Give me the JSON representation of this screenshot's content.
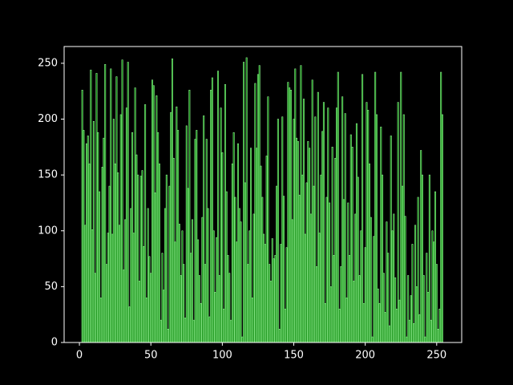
{
  "chart_data": {
    "type": "bar",
    "color": "#008000",
    "edgecolor": "#90ee90",
    "background": "#000000",
    "x": [
      2,
      3,
      4,
      5,
      6,
      7,
      8,
      9,
      10,
      11,
      12,
      13,
      14,
      15,
      16,
      17,
      18,
      19,
      20,
      21,
      22,
      23,
      24,
      25,
      26,
      27,
      28,
      29,
      30,
      31,
      32,
      33,
      34,
      35,
      36,
      37,
      38,
      39,
      40,
      41,
      42,
      43,
      44,
      45,
      46,
      47,
      48,
      49,
      50,
      51,
      52,
      53,
      54,
      55,
      56,
      57,
      58,
      59,
      60,
      61,
      62,
      63,
      64,
      65,
      66,
      67,
      68,
      69,
      70,
      71,
      72,
      73,
      74,
      75,
      76,
      77,
      78,
      79,
      80,
      81,
      82,
      83,
      84,
      85,
      86,
      87,
      88,
      89,
      90,
      91,
      92,
      93,
      94,
      95,
      96,
      97,
      98,
      99,
      100,
      101,
      102,
      103,
      104,
      105,
      106,
      107,
      108,
      109,
      110,
      111,
      112,
      113,
      114,
      115,
      116,
      117,
      118,
      119,
      120,
      121,
      122,
      123,
      124,
      125,
      126,
      127,
      128,
      129,
      130,
      131,
      132,
      133,
      134,
      135,
      136,
      137,
      138,
      139,
      140,
      141,
      142,
      143,
      144,
      145,
      146,
      147,
      148,
      149,
      150,
      151,
      152,
      153,
      154,
      155,
      156,
      157,
      158,
      159,
      160,
      161,
      162,
      163,
      164,
      165,
      166,
      167,
      168,
      169,
      170,
      171,
      172,
      173,
      174,
      175,
      176,
      177,
      178,
      179,
      180,
      181,
      182,
      183,
      184,
      185,
      186,
      187,
      188,
      189,
      190,
      191,
      192,
      193,
      194,
      195,
      196,
      197,
      198,
      199,
      200,
      201,
      202,
      203,
      204,
      205,
      206,
      207,
      208,
      209,
      210,
      211,
      212,
      213,
      214,
      215,
      216,
      217,
      218,
      219,
      220,
      221,
      222,
      223,
      224,
      225,
      226,
      227,
      228,
      229,
      230,
      231,
      232,
      233,
      234,
      235,
      236,
      237,
      238,
      239,
      240,
      241,
      242,
      243,
      244,
      245,
      246,
      247,
      248,
      249,
      250,
      251,
      252,
      253,
      254
    ],
    "values": [
      226,
      190,
      105,
      178,
      185,
      160,
      244,
      101,
      198,
      62,
      241,
      188,
      135,
      40,
      157,
      183,
      249,
      70,
      98,
      140,
      245,
      97,
      200,
      160,
      238,
      152,
      105,
      204,
      253,
      65,
      110,
      210,
      251,
      32,
      120,
      188,
      98,
      228,
      168,
      150,
      55,
      149,
      154,
      86,
      213,
      40,
      120,
      77,
      62,
      235,
      230,
      134,
      221,
      188,
      160,
      20,
      80,
      47,
      120,
      150,
      12,
      140,
      206,
      254,
      165,
      90,
      211,
      190,
      106,
      60,
      100,
      70,
      22,
      194,
      138,
      226,
      80,
      110,
      20,
      182,
      190,
      92,
      60,
      35,
      112,
      203,
      70,
      182,
      120,
      23,
      226,
      237,
      100,
      45,
      94,
      243,
      60,
      210,
      170,
      30,
      231,
      135,
      78,
      62,
      20,
      160,
      188,
      130,
      90,
      178,
      120,
      108,
      5,
      251,
      143,
      255,
      70,
      100,
      174,
      40,
      115,
      232,
      174,
      240,
      248,
      158,
      130,
      97,
      88,
      167,
      220,
      70,
      55,
      93,
      75,
      78,
      140,
      200,
      12,
      88,
      202,
      131,
      30,
      85,
      233,
      228,
      226,
      110,
      200,
      245,
      183,
      180,
      132,
      248,
      150,
      218,
      97,
      143,
      180,
      174,
      115,
      235,
      140,
      202,
      68,
      224,
      98,
      150,
      189,
      215,
      35,
      130,
      210,
      125,
      50,
      175,
      78,
      165,
      210,
      242,
      30,
      68,
      220,
      128,
      205,
      40,
      125,
      78,
      186,
      175,
      55,
      115,
      196,
      148,
      60,
      100,
      240,
      35,
      85,
      215,
      208,
      160,
      112,
      5,
      95,
      242,
      204,
      48,
      35,
      193,
      150,
      62,
      27,
      108,
      80,
      15,
      185,
      100,
      115,
      58,
      30,
      215,
      38,
      242,
      140,
      204,
      113,
      5,
      60,
      20,
      42,
      88,
      17,
      105,
      50,
      130,
      25,
      172,
      150,
      60,
      5,
      80,
      45,
      150,
      20,
      100,
      90,
      135,
      70,
      12,
      30,
      242,
      204
    ],
    "xlim": [
      -10.7,
      267.5
    ],
    "ylim": [
      0,
      265
    ],
    "xticks": [
      0,
      50,
      100,
      150,
      200,
      250
    ],
    "yticks": [
      0,
      50,
      100,
      150,
      200,
      250
    ]
  }
}
